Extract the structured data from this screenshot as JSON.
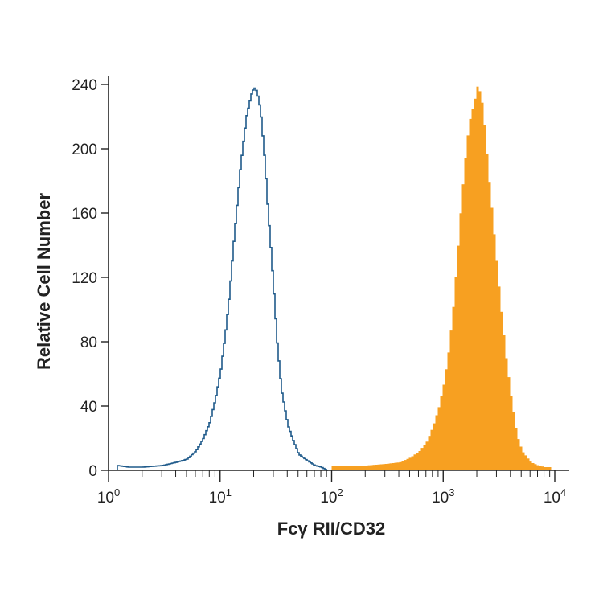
{
  "chart_data": {
    "type": "histogram",
    "xlabel": "Fcγ RII/CD32",
    "ylabel": "Relative Cell Number",
    "x_scale": "log",
    "xlim": [
      1,
      10000
    ],
    "ylim": [
      0,
      245
    ],
    "x_ticks": [
      {
        "value": 1,
        "base": "10",
        "exp": "0"
      },
      {
        "value": 10,
        "base": "10",
        "exp": "1"
      },
      {
        "value": 100,
        "base": "10",
        "exp": "2"
      },
      {
        "value": 1000,
        "base": "10",
        "exp": "3"
      },
      {
        "value": 10000,
        "base": "10",
        "exp": "4"
      }
    ],
    "y_ticks": [
      0,
      40,
      80,
      120,
      160,
      200,
      240
    ],
    "grid": false,
    "legend": "none",
    "series": [
      {
        "style": "outline",
        "color": "#1f5a8a",
        "x": [
          1.2,
          1.5,
          2,
          3,
          4,
          5,
          6,
          7,
          8,
          9,
          10,
          11,
          12,
          13,
          14,
          15,
          16,
          17,
          18,
          19,
          20,
          21,
          22,
          23,
          24,
          25,
          26,
          28,
          30,
          32,
          35,
          40,
          45,
          50,
          60,
          70,
          80,
          90
        ],
        "y": [
          3,
          2,
          2,
          3,
          5,
          7,
          12,
          20,
          30,
          45,
          62,
          85,
          110,
          140,
          165,
          188,
          205,
          220,
          228,
          235,
          238,
          236,
          230,
          220,
          205,
          190,
          170,
          140,
          110,
          80,
          50,
          28,
          18,
          10,
          6,
          3,
          2,
          0
        ]
      },
      {
        "style": "filled",
        "color": "#f7a021",
        "x": [
          100,
          150,
          200,
          300,
          400,
          500,
          600,
          700,
          800,
          900,
          1000,
          1100,
          1200,
          1300,
          1400,
          1500,
          1600,
          1700,
          1800,
          1900,
          2000,
          2100,
          2200,
          2300,
          2400,
          2500,
          2700,
          3000,
          3300,
          3600,
          4000,
          4500,
          5000,
          6000,
          7000,
          8000,
          9000
        ],
        "y": [
          3,
          3,
          3,
          4,
          5,
          8,
          12,
          18,
          28,
          40,
          55,
          75,
          100,
          130,
          160,
          185,
          205,
          218,
          225,
          232,
          240,
          235,
          228,
          215,
          200,
          185,
          160,
          125,
          95,
          70,
          45,
          22,
          12,
          5,
          3,
          2,
          2
        ]
      }
    ]
  }
}
